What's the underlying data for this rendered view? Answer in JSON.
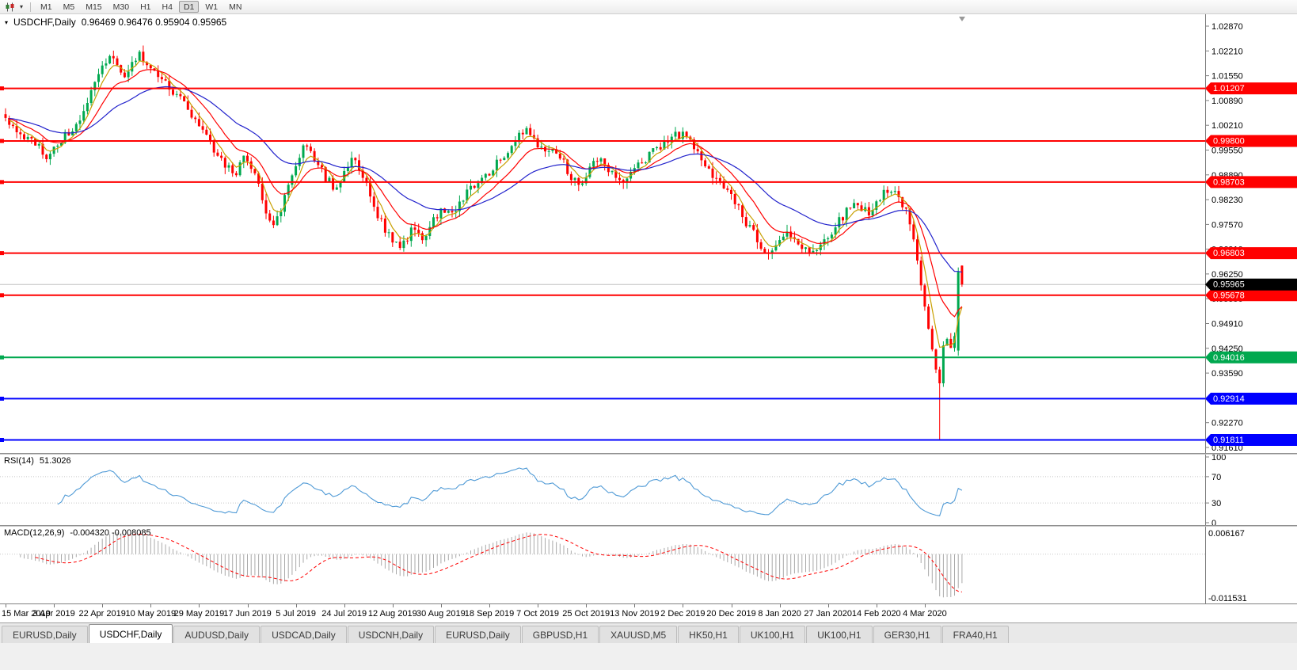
{
  "toolbar": {
    "timeframes": [
      "M1",
      "M5",
      "M15",
      "M30",
      "H1",
      "H4",
      "D1",
      "W1",
      "MN"
    ],
    "active_timeframe": "D1"
  },
  "chart": {
    "symbol": "USDCHF,Daily",
    "ohlc_text": "0.96469 0.96476 0.95904 0.95965",
    "current_price_label": "0.95965",
    "price_axis_labels": [
      "1.02870",
      "1.02210",
      "1.01550",
      "1.00890",
      "1.00210",
      "0.99550",
      "0.98890",
      "0.98230",
      "0.97570",
      "0.96910",
      "0.96250",
      "0.95590",
      "0.94910",
      "0.94250",
      "0.93590",
      "0.92930",
      "0.92270",
      "0.91610"
    ],
    "colors": {
      "bull": "#00A84F",
      "bear": "#FF0000",
      "ma_fast": "#C8A000",
      "ma_mid": "#FF0000",
      "ma_slow": "#2222CC",
      "bid_line": "#C0C0C0"
    }
  },
  "chart_data": {
    "type": "candlestick",
    "symbol": "USDCHF",
    "timeframe": "Daily",
    "last_bar_ohlc": {
      "open": 0.96469,
      "high": 0.96476,
      "low": 0.95904,
      "close": 0.95965
    },
    "current_price": 0.95965,
    "bars": 258,
    "seed": 20,
    "y_axis": {
      "top": 1.0287,
      "bottom": 0.9161
    },
    "price_path_anchors": [
      [
        0,
        1.0035
      ],
      [
        4,
        1.0
      ],
      [
        8,
        0.997
      ],
      [
        11,
        0.994
      ],
      [
        14,
        0.9975
      ],
      [
        17,
        1.0
      ],
      [
        20,
        1.0045
      ],
      [
        23,
        1.0105
      ],
      [
        26,
        1.017
      ],
      [
        28,
        1.0215
      ],
      [
        30,
        1.019
      ],
      [
        32,
        1.015
      ],
      [
        34,
        1.02
      ],
      [
        36,
        1.021
      ],
      [
        38,
        1.0175
      ],
      [
        41,
        1.015
      ],
      [
        44,
        1.0125
      ],
      [
        47,
        1.01
      ],
      [
        50,
        1.0055
      ],
      [
        53,
        1.0005
      ],
      [
        56,
        0.995
      ],
      [
        59,
        0.9915
      ],
      [
        62,
        0.99
      ],
      [
        64,
        0.9935
      ],
      [
        66,
        0.9905
      ],
      [
        68,
        0.986
      ],
      [
        70,
        0.978
      ],
      [
        72,
        0.9745
      ],
      [
        74,
        0.98
      ],
      [
        76,
        0.987
      ],
      [
        78,
        0.992
      ],
      [
        80,
        0.996
      ],
      [
        82,
        0.9945
      ],
      [
        84,
        0.992
      ],
      [
        86,
        0.988
      ],
      [
        88,
        0.986
      ],
      [
        90,
        0.987
      ],
      [
        92,
        0.9915
      ],
      [
        94,
        0.993
      ],
      [
        96,
        0.989
      ],
      [
        98,
        0.983
      ],
      [
        100,
        0.978
      ],
      [
        102,
        0.974
      ],
      [
        104,
        0.972
      ],
      [
        106,
        0.97
      ],
      [
        108,
        0.9725
      ],
      [
        110,
        0.975
      ],
      [
        112,
        0.972
      ],
      [
        114,
        0.9755
      ],
      [
        116,
        0.9785
      ],
      [
        118,
        0.98
      ],
      [
        120,
        0.979
      ],
      [
        122,
        0.9815
      ],
      [
        124,
        0.984
      ],
      [
        126,
        0.986
      ],
      [
        128,
        0.9885
      ],
      [
        130,
        0.99
      ],
      [
        132,
        0.992
      ],
      [
        134,
        0.9945
      ],
      [
        136,
        0.9965
      ],
      [
        138,
        0.999
      ],
      [
        140,
        1.0005
      ],
      [
        142,
        0.9985
      ],
      [
        144,
        0.9955
      ],
      [
        146,
        0.9965
      ],
      [
        148,
        0.995
      ],
      [
        150,
        0.992
      ],
      [
        152,
        0.9885
      ],
      [
        154,
        0.9865
      ],
      [
        156,
        0.989
      ],
      [
        158,
        0.9915
      ],
      [
        160,
        0.9925
      ],
      [
        162,
        0.9905
      ],
      [
        164,
        0.988
      ],
      [
        166,
        0.987
      ],
      [
        168,
        0.989
      ],
      [
        170,
        0.991
      ],
      [
        172,
        0.993
      ],
      [
        174,
        0.995
      ],
      [
        176,
        0.997
      ],
      [
        178,
        0.9985
      ],
      [
        180,
        1.0
      ],
      [
        182,
        0.9995
      ],
      [
        184,
        0.9975
      ],
      [
        186,
        0.9945
      ],
      [
        188,
        0.991
      ],
      [
        190,
        0.9885
      ],
      [
        192,
        0.9865
      ],
      [
        194,
        0.984
      ],
      [
        196,
        0.9815
      ],
      [
        198,
        0.978
      ],
      [
        200,
        0.9745
      ],
      [
        202,
        0.9715
      ],
      [
        204,
        0.969
      ],
      [
        206,
        0.968
      ],
      [
        208,
        0.9705
      ],
      [
        210,
        0.973
      ],
      [
        212,
        0.971
      ],
      [
        214,
        0.969
      ],
      [
        216,
        0.968
      ],
      [
        218,
        0.97
      ],
      [
        220,
        0.972
      ],
      [
        222,
        0.974
      ],
      [
        224,
        0.9765
      ],
      [
        226,
        0.979
      ],
      [
        228,
        0.9805
      ],
      [
        230,
        0.98
      ],
      [
        232,
        0.979
      ],
      [
        234,
        0.9815
      ],
      [
        236,
        0.984
      ],
      [
        238,
        0.985
      ],
      [
        240,
        0.9835
      ],
      [
        242,
        0.9795
      ],
      [
        243,
        0.976
      ],
      [
        244,
        0.9715
      ],
      [
        245,
        0.966
      ],
      [
        246,
        0.9595
      ],
      [
        247,
        0.954
      ],
      [
        248,
        0.948
      ],
      [
        249,
        0.942
      ],
      [
        250,
        0.937
      ],
      [
        251,
        0.933
      ],
      [
        252,
        0.943
      ],
      [
        253,
        0.9455
      ],
      [
        254,
        0.9425
      ],
      [
        255,
        0.9455
      ],
      [
        256,
        0.963
      ],
      [
        257,
        0.95965
      ]
    ],
    "bar_overrides": {
      "251": {
        "l": 0.9182
      },
      "256": {
        "o": 0.942,
        "h": 0.9642,
        "l": 0.9406,
        "c": 0.963
      },
      "257": {
        "o": 0.96469,
        "h": 0.96476,
        "l": 0.95904,
        "c": 0.95965
      }
    },
    "x_axis_labels": [
      {
        "label": "15 Mar 2019",
        "bar": 0
      },
      {
        "label": "3 Apr 2019",
        "bar": 13
      },
      {
        "label": "22 Apr 2019",
        "bar": 26
      },
      {
        "label": "10 May 2019",
        "bar": 39
      },
      {
        "label": "29 May 2019",
        "bar": 52
      },
      {
        "label": "17 Jun 2019",
        "bar": 65
      },
      {
        "label": "5 Jul 2019",
        "bar": 78
      },
      {
        "label": "24 Jul 2019",
        "bar": 91
      },
      {
        "label": "12 Aug 2019",
        "bar": 104
      },
      {
        "label": "30 Aug 2019",
        "bar": 117
      },
      {
        "label": "18 Sep 2019",
        "bar": 130
      },
      {
        "label": "7 Oct 2019",
        "bar": 143
      },
      {
        "label": "25 Oct 2019",
        "bar": 156
      },
      {
        "label": "13 Nov 2019",
        "bar": 169
      },
      {
        "label": "2 Dec 2019",
        "bar": 182
      },
      {
        "label": "20 Dec 2019",
        "bar": 195
      },
      {
        "label": "8 Jan 2020",
        "bar": 208
      },
      {
        "label": "27 Jan 2020",
        "bar": 221
      },
      {
        "label": "14 Feb 2020",
        "bar": 234
      },
      {
        "label": "4 Mar 2020",
        "bar": 247
      }
    ],
    "horizontal_lines": [
      {
        "price": 1.01207,
        "label": "1.01207",
        "color": "#FF0000"
      },
      {
        "price": 0.998,
        "label": "0.99800",
        "color": "#FF0000"
      },
      {
        "price": 0.98703,
        "label": "0.98703",
        "color": "#FF0000"
      },
      {
        "price": 0.96803,
        "label": "0.96803",
        "color": "#FF0000"
      },
      {
        "price": 0.95678,
        "label": "0.95678",
        "color": "#FF0000"
      },
      {
        "price": 0.94016,
        "label": "0.94016",
        "color": "#00A84F"
      },
      {
        "price": 0.92914,
        "label": "0.92914",
        "color": "#0000FF"
      },
      {
        "price": 0.91811,
        "label": "0.91811",
        "color": "#0000FF"
      }
    ],
    "moving_average_periods": [
      5,
      13,
      34
    ]
  },
  "rsi": {
    "name": "RSI(14)",
    "value": "51.3026",
    "period": 14,
    "axis_labels": [
      "100",
      "70",
      "30",
      "0"
    ],
    "levels": [
      70,
      30
    ],
    "color": "#4F9AD6"
  },
  "macd": {
    "name": "MACD(12,26,9)",
    "values": "-0.004320 -0.008085",
    "fast": 12,
    "slow": 26,
    "signal": 9,
    "axis_max_label": "0.006167",
    "axis_min_label": "-0.011531",
    "histogram_color": "#A9A9A9",
    "signal_color": "#FF0000"
  },
  "tabs": {
    "active_index": 1,
    "items": [
      "EURUSD,Daily",
      "USDCHF,Daily",
      "AUDUSD,Daily",
      "USDCAD,Daily",
      "USDCNH,Daily",
      "EURUSD,Daily",
      "GBPUSD,H1",
      "XAUUSD,M5",
      "HK50,H1",
      "UK100,H1",
      "UK100,H1",
      "GER30,H1",
      "FRA40,H1"
    ]
  }
}
